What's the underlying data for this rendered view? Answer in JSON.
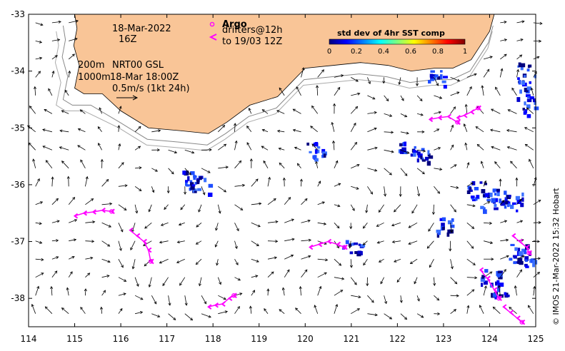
{
  "map": {
    "x_axis": {
      "min": 114,
      "max": 125,
      "ticks": [
        114,
        115,
        116,
        117,
        118,
        119,
        120,
        121,
        122,
        123,
        124,
        125
      ]
    },
    "y_axis": {
      "min": -38.5,
      "max": -33,
      "ticks": [
        -33,
        -34,
        -35,
        -36,
        -37,
        -38
      ]
    },
    "land_color": "#f9c597",
    "ocean_color": "#ffffff"
  },
  "annotations": {
    "date": "18-Mar-2022",
    "hour": "16Z",
    "depth_line1": "200m",
    "depth_line2": "1000m",
    "model_line1": "NRT00 GSL",
    "model_line2": "18-Mar 18:00Z",
    "scale_label": "0.5m/s (1kt 24h)"
  },
  "argo_legend": {
    "title": "Argo",
    "line1": "drifters@12h",
    "line2": "to 19/03 12Z",
    "color": "#ff00ff"
  },
  "colorbar": {
    "title": "std dev of 4hr SST comp",
    "ticks": [
      "0",
      "0.2",
      "0.4",
      "0.6",
      "0.8",
      "1"
    ],
    "colors": [
      "#00007f",
      "#0000ff",
      "#007fff",
      "#00ffff",
      "#7fff7f",
      "#ffff00",
      "#ff7f00",
      "#ff0000",
      "#7f0000"
    ]
  },
  "credit": "© IMOS 21-Mar-2022 15:32 Hobart",
  "chart_data": {
    "type": "map",
    "xlim": [
      114,
      125
    ],
    "ylim": [
      -38.5,
      -33
    ],
    "coastline": [
      [
        115.0,
        -33.0
      ],
      [
        115.05,
        -33.25
      ],
      [
        114.98,
        -33.55
      ],
      [
        115.1,
        -33.9
      ],
      [
        115.0,
        -34.3
      ],
      [
        115.2,
        -34.4
      ],
      [
        115.6,
        -34.4
      ],
      [
        116.0,
        -34.7
      ],
      [
        116.6,
        -35.0
      ],
      [
        117.3,
        -35.05
      ],
      [
        117.9,
        -35.1
      ],
      [
        118.3,
        -34.9
      ],
      [
        118.8,
        -34.6
      ],
      [
        119.4,
        -34.45
      ],
      [
        120.0,
        -33.95
      ],
      [
        120.6,
        -33.9
      ],
      [
        121.2,
        -33.85
      ],
      [
        121.8,
        -33.9
      ],
      [
        122.3,
        -34.0
      ],
      [
        122.8,
        -33.95
      ],
      [
        123.2,
        -33.95
      ],
      [
        123.6,
        -33.8
      ],
      [
        123.8,
        -33.55
      ],
      [
        124.0,
        -33.3
      ],
      [
        124.1,
        -33.0
      ]
    ],
    "drifters": [
      {
        "lons": [
          115.0,
          115.2,
          115.4,
          115.6,
          115.8
        ],
        "lats": [
          -36.55,
          -36.5,
          -36.48,
          -36.45,
          -36.47
        ]
      },
      {
        "lons": [
          116.2,
          116.35,
          116.5,
          116.6,
          116.65
        ],
        "lats": [
          -36.8,
          -36.9,
          -37.0,
          -37.15,
          -37.35
        ]
      },
      {
        "lons": [
          117.9,
          118.05,
          118.2,
          118.35,
          118.45
        ],
        "lats": [
          -38.15,
          -38.12,
          -38.1,
          -38.0,
          -37.95
        ]
      },
      {
        "lons": [
          120.1,
          120.3,
          120.5,
          120.7,
          120.85
        ],
        "lats": [
          -37.1,
          -37.05,
          -37.0,
          -37.05,
          -37.1
        ]
      },
      {
        "lons": [
          122.7,
          122.9,
          123.1,
          123.3
        ],
        "lats": [
          -34.85,
          -34.82,
          -34.8,
          -34.9
        ]
      },
      {
        "lons": [
          123.3,
          123.45,
          123.6,
          123.75
        ],
        "lats": [
          -34.82,
          -34.78,
          -34.72,
          -34.65
        ]
      },
      {
        "lons": [
          123.8,
          123.95,
          124.1,
          124.2
        ],
        "lats": [
          -37.5,
          -37.65,
          -37.85,
          -38.0
        ]
      },
      {
        "lons": [
          124.3,
          124.45,
          124.6,
          124.7
        ],
        "lats": [
          -38.15,
          -38.25,
          -38.35,
          -38.42
        ]
      },
      {
        "lons": [
          124.5,
          124.65,
          124.8,
          124.85
        ],
        "lats": [
          -36.9,
          -37.0,
          -37.1,
          -37.2
        ]
      }
    ]
  }
}
